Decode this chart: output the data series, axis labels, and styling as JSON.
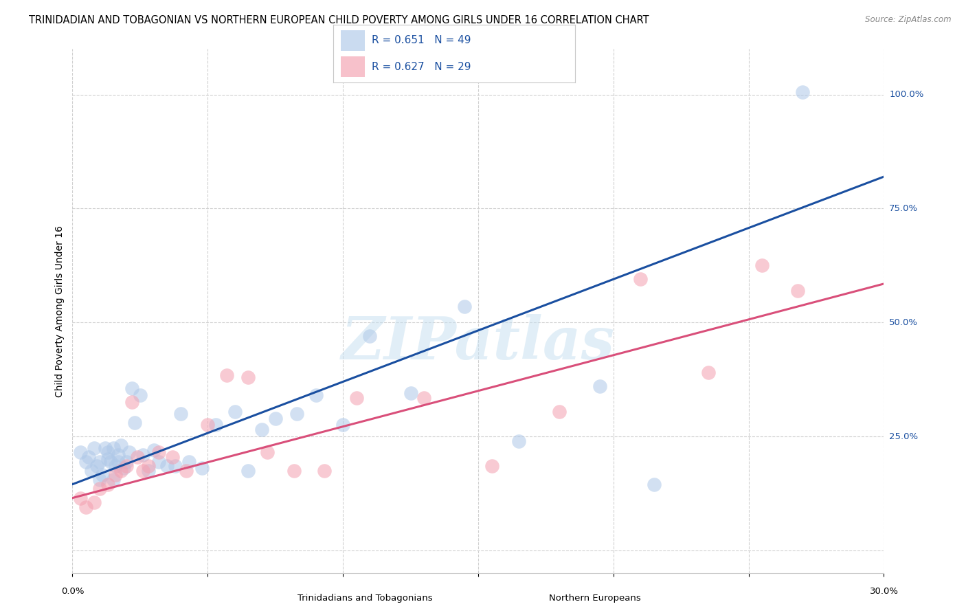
{
  "title": "TRINIDADIAN AND TOBAGONIAN VS NORTHERN EUROPEAN CHILD POVERTY AMONG GIRLS UNDER 16 CORRELATION CHART",
  "source": "Source: ZipAtlas.com",
  "ylabel": "Child Poverty Among Girls Under 16",
  "xlim": [
    0.0,
    0.3
  ],
  "ylim": [
    -0.05,
    1.1
  ],
  "blue_R": 0.651,
  "blue_N": 49,
  "pink_R": 0.627,
  "pink_N": 29,
  "blue_color": "#aec8e8",
  "pink_color": "#f4a0b0",
  "blue_line_color": "#1a4fa0",
  "pink_line_color": "#d94f7a",
  "blue_label": "Trinidadians and Tobagonians",
  "pink_label": "Northern Europeans",
  "watermark": "ZIPatlas",
  "blue_x": [
    0.003,
    0.005,
    0.006,
    0.007,
    0.008,
    0.009,
    0.01,
    0.01,
    0.011,
    0.012,
    0.013,
    0.013,
    0.014,
    0.015,
    0.015,
    0.016,
    0.017,
    0.017,
    0.018,
    0.019,
    0.02,
    0.021,
    0.022,
    0.023,
    0.025,
    0.026,
    0.028,
    0.03,
    0.032,
    0.035,
    0.038,
    0.04,
    0.043,
    0.048,
    0.053,
    0.06,
    0.065,
    0.07,
    0.075,
    0.083,
    0.09,
    0.1,
    0.11,
    0.125,
    0.145,
    0.165,
    0.195,
    0.215,
    0.27
  ],
  "blue_y": [
    0.215,
    0.195,
    0.205,
    0.175,
    0.225,
    0.185,
    0.195,
    0.155,
    0.165,
    0.225,
    0.215,
    0.2,
    0.195,
    0.225,
    0.155,
    0.185,
    0.21,
    0.195,
    0.23,
    0.18,
    0.195,
    0.215,
    0.355,
    0.28,
    0.34,
    0.21,
    0.175,
    0.22,
    0.195,
    0.185,
    0.185,
    0.3,
    0.195,
    0.18,
    0.275,
    0.305,
    0.175,
    0.265,
    0.29,
    0.3,
    0.34,
    0.275,
    0.47,
    0.345,
    0.535,
    0.24,
    0.36,
    0.145,
    1.005
  ],
  "pink_x": [
    0.003,
    0.005,
    0.008,
    0.01,
    0.013,
    0.016,
    0.018,
    0.02,
    0.022,
    0.024,
    0.026,
    0.028,
    0.032,
    0.037,
    0.042,
    0.05,
    0.057,
    0.065,
    0.072,
    0.082,
    0.093,
    0.105,
    0.13,
    0.155,
    0.18,
    0.21,
    0.235,
    0.255,
    0.268
  ],
  "pink_y": [
    0.115,
    0.095,
    0.105,
    0.135,
    0.145,
    0.165,
    0.175,
    0.185,
    0.325,
    0.205,
    0.175,
    0.185,
    0.215,
    0.205,
    0.175,
    0.275,
    0.385,
    0.38,
    0.215,
    0.175,
    0.175,
    0.335,
    0.335,
    0.185,
    0.305,
    0.595,
    0.39,
    0.625,
    0.57
  ],
  "blue_line": [
    0.0,
    0.3,
    0.145,
    0.82
  ],
  "pink_line": [
    0.0,
    0.3,
    0.115,
    0.585
  ],
  "x_ticks": [
    0.0,
    0.05,
    0.1,
    0.15,
    0.2,
    0.25,
    0.3
  ],
  "y_ticks": [
    0.0,
    0.25,
    0.5,
    0.75,
    1.0
  ],
  "y_tick_labels": [
    "",
    "25.0%",
    "50.0%",
    "75.0%",
    "100.0%"
  ],
  "grid_color": "#d0d0d0",
  "title_fontsize": 10.5,
  "source_fontsize": 8.5
}
